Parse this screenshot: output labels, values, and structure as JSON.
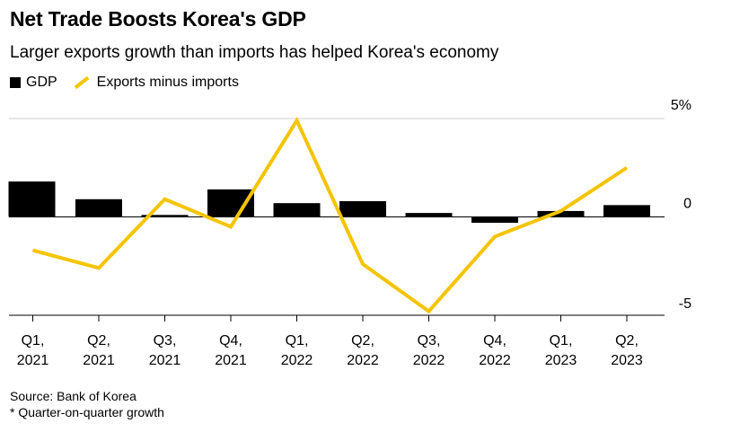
{
  "chart_data": {
    "type": "bar+line",
    "title": "Net Trade Boosts Korea's GDP",
    "subtitle": "Larger exports growth than imports has helped Korea's economy",
    "categories": [
      [
        "Q1,",
        "2021"
      ],
      [
        "Q2,",
        "2021"
      ],
      [
        "Q3,",
        "2021"
      ],
      [
        "Q4,",
        "2021"
      ],
      [
        "Q1,",
        "2022"
      ],
      [
        "Q2,",
        "2022"
      ],
      [
        "Q3,",
        "2022"
      ],
      [
        "Q4,",
        "2022"
      ],
      [
        "Q1,",
        "2023"
      ],
      [
        "Q2,",
        "2023"
      ]
    ],
    "series": [
      {
        "name": "GDP",
        "kind": "bar",
        "color": "#000000",
        "values": [
          1.8,
          0.9,
          0.1,
          1.4,
          0.7,
          0.8,
          0.2,
          -0.3,
          0.3,
          0.6
        ]
      },
      {
        "name": "Exports minus imports",
        "kind": "line",
        "color": "#f5c400",
        "values": [
          -1.7,
          -2.6,
          0.9,
          -0.5,
          4.9,
          -2.4,
          -4.8,
          -1.0,
          0.3,
          2.5
        ]
      }
    ],
    "yaxis": {
      "min": -5,
      "max": 5,
      "ticks": [
        {
          "value": 5,
          "label": "5%"
        },
        {
          "value": 0,
          "label": "0"
        },
        {
          "value": -5,
          "label": "-5"
        }
      ]
    },
    "legend": {
      "position": "top-left"
    }
  },
  "footer": {
    "source": "Source: Bank of Korea",
    "note": "* Quarter-on-quarter growth"
  }
}
